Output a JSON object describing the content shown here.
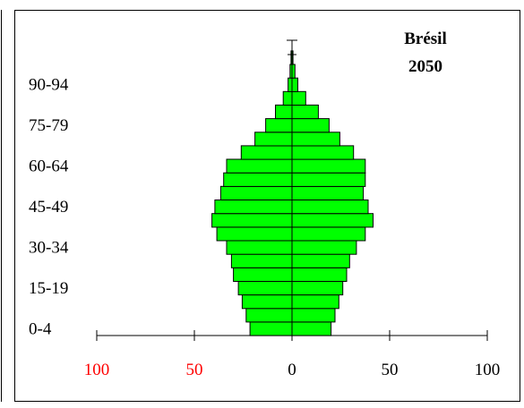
{
  "chart_data": {
    "type": "bar",
    "subtype": "population-pyramid",
    "title": "Brésil",
    "subtitle": "2050",
    "age_groups": [
      "0-4",
      "5-9",
      "10-14",
      "15-19",
      "20-24",
      "25-29",
      "30-34",
      "35-39",
      "40-44",
      "45-49",
      "50-54",
      "55-59",
      "60-64",
      "65-69",
      "70-74",
      "75-79",
      "80-84",
      "85-89",
      "90-94",
      "95-99",
      "100+"
    ],
    "age_tick_labels": [
      "0-4",
      "15-19",
      "30-34",
      "45-49",
      "60-64",
      "75-79",
      "90-94"
    ],
    "series": [
      {
        "side": "left",
        "values": [
          21.5,
          23.5,
          25.5,
          27.5,
          30,
          31,
          33.5,
          38.5,
          41,
          39.5,
          36.5,
          35,
          33.5,
          26,
          19,
          13.5,
          8.5,
          4.5,
          2,
          1,
          0.5
        ]
      },
      {
        "side": "right",
        "values": [
          20,
          22,
          24,
          26,
          28,
          29.5,
          33,
          37.5,
          41.5,
          39,
          36.5,
          37.5,
          37.5,
          31.5,
          24.5,
          19,
          13.5,
          7,
          3,
          1.5,
          0.5
        ]
      }
    ],
    "x_ticks": [
      {
        "label": "100",
        "value": -100,
        "color": "#ff0000"
      },
      {
        "label": "50",
        "value": -50,
        "color": "#ff0000"
      },
      {
        "label": "0",
        "value": 0,
        "color": "#000000"
      },
      {
        "label": "50",
        "value": 50,
        "color": "#000000"
      },
      {
        "label": "100",
        "value": 100,
        "color": "#000000"
      }
    ],
    "xlim": [
      -100,
      100
    ],
    "bar_color": "#00ff00",
    "bar_border": "#000000",
    "grid": false
  }
}
